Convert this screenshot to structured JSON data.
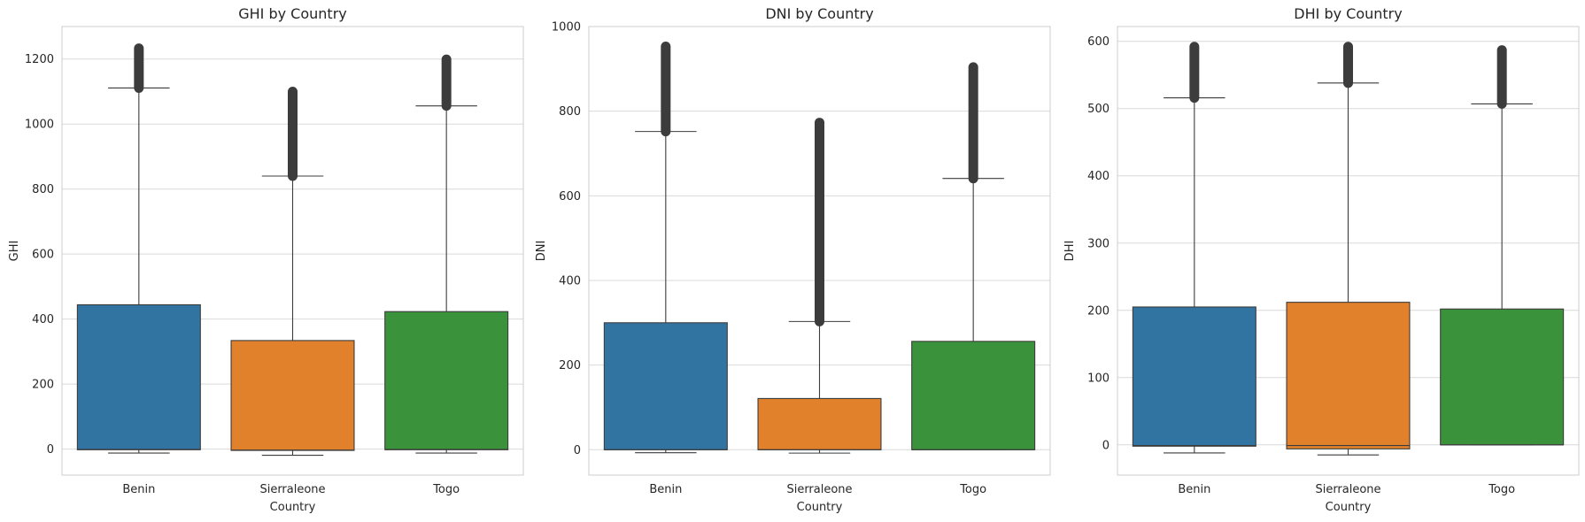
{
  "colors": {
    "Benin": "#3274a1",
    "Sierraleone": "#e1812c",
    "Togo": "#3a923a",
    "grid": "#d9d9d9",
    "frame": "#cccccc",
    "line": "#3c3c3c"
  },
  "chart_data": [
    {
      "type": "box",
      "title": "GHI by Country",
      "xlabel": "Country",
      "ylabel": "GHI",
      "ylim": [
        -80,
        1300
      ],
      "yticks": [
        0,
        200,
        400,
        600,
        800,
        1000,
        1200
      ],
      "grid": true,
      "categories": [
        "Benin",
        "Sierraleone",
        "Togo"
      ],
      "boxes": [
        {
          "name": "Benin",
          "whisker_low": -12,
          "q1": -2,
          "median": -1,
          "q3": 444,
          "whisker_high": 1111,
          "outlier_min": 1111,
          "outlier_max": 1233
        },
        {
          "name": "Sierraleone",
          "whisker_low": -19,
          "q1": -4,
          "median": -3,
          "q3": 334,
          "whisker_high": 840,
          "outlier_min": 840,
          "outlier_max": 1100
        },
        {
          "name": "Togo",
          "whisker_low": -12,
          "q1": -2,
          "median": -1,
          "q3": 423,
          "whisker_high": 1056,
          "outlier_min": 1056,
          "outlier_max": 1199
        }
      ]
    },
    {
      "type": "box",
      "title": "DNI by Country",
      "xlabel": "Country",
      "ylabel": "DNI",
      "ylim": [
        -60,
        1000
      ],
      "yticks": [
        0,
        200,
        400,
        600,
        800,
        1000
      ],
      "grid": true,
      "categories": [
        "Benin",
        "Sierraleone",
        "Togo"
      ],
      "boxes": [
        {
          "name": "Benin",
          "whisker_low": -7,
          "q1": 0,
          "median": 0,
          "q3": 300,
          "whisker_high": 752,
          "outlier_min": 752,
          "outlier_max": 953
        },
        {
          "name": "Sierraleone",
          "whisker_low": -8,
          "q1": 0,
          "median": 0,
          "q3": 121,
          "whisker_high": 303,
          "outlier_min": 303,
          "outlier_max": 773
        },
        {
          "name": "Togo",
          "whisker_low": 0,
          "q1": 0,
          "median": 0,
          "q3": 256,
          "whisker_high": 641,
          "outlier_min": 641,
          "outlier_max": 904
        }
      ]
    },
    {
      "type": "box",
      "title": "DHI by Country",
      "xlabel": "Country",
      "ylabel": "DHI",
      "ylim": [
        -45,
        622
      ],
      "yticks": [
        0,
        100,
        200,
        300,
        400,
        500,
        600
      ],
      "grid": true,
      "categories": [
        "Benin",
        "Sierraleone",
        "Togo"
      ],
      "boxes": [
        {
          "name": "Benin",
          "whisker_low": -12,
          "q1": -2,
          "median": -1,
          "q3": 205,
          "whisker_high": 516,
          "outlier_min": 516,
          "outlier_max": 592
        },
        {
          "name": "Sierraleone",
          "whisker_low": -15,
          "q1": -6,
          "median": -1,
          "q3": 212,
          "whisker_high": 538,
          "outlier_min": 538,
          "outlier_max": 592
        },
        {
          "name": "Togo",
          "whisker_low": 0,
          "q1": 0,
          "median": 0,
          "q3": 202,
          "whisker_high": 507,
          "outlier_min": 507,
          "outlier_max": 587
        }
      ]
    }
  ]
}
